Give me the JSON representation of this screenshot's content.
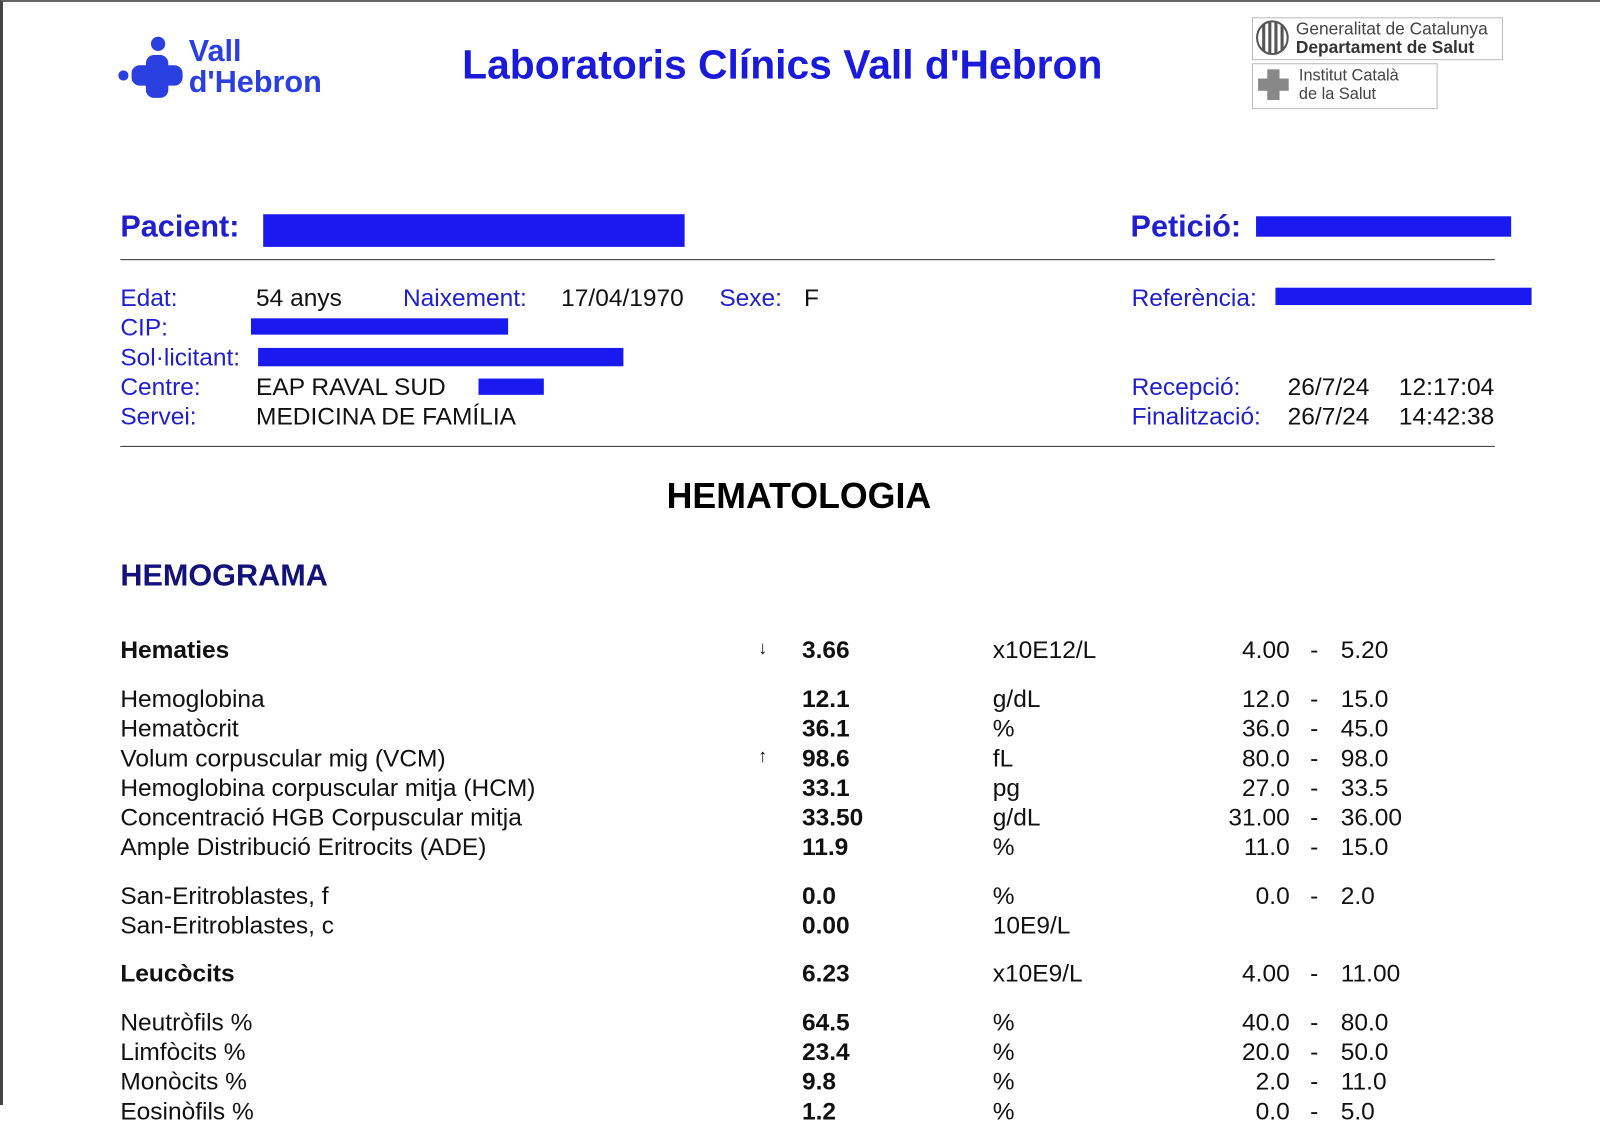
{
  "header": {
    "logo_text": [
      "Vall",
      "d'Hebron"
    ],
    "title": "Laboratoris Clínics Vall d'Hebron",
    "gencat": [
      "Generalitat de Catalunya",
      "Departament de Salut"
    ],
    "ics": [
      "Institut Català",
      "de la Salut"
    ]
  },
  "patient": {
    "pacient_label": "Pacient:",
    "peticio_label": "Petició:",
    "edat_label": "Edat:",
    "edat": "54 anys",
    "naixement_label": "Naixement:",
    "naixement": "17/04/1970",
    "sexe_label": "Sexe:",
    "sexe": "F",
    "referencia_label": "Referència:",
    "cip_label": "CIP:",
    "solicitant_label": "Sol·licitant:",
    "centre_label": "Centre:",
    "centre": "EAP RAVAL SUD",
    "servei_label": "Servei:",
    "servei": "MEDICINA DE FAMÍLIA",
    "recepcio_label": "Recepció:",
    "recepcio_date": "26/7/24",
    "recepcio_time": "12:17:04",
    "finalitzacio_label": "Finalització:",
    "finalitzacio_date": "26/7/24",
    "finalitzacio_time": "14:42:38"
  },
  "section": "HEMATOLOGIA",
  "subsection": "HEMOGRAMA",
  "table": {
    "range_separator": "-",
    "rows": [
      {
        "name": "Hematies",
        "bold": true,
        "flag": "↓",
        "result": "3.66",
        "unit": "x10E12/L",
        "low": "4.00",
        "high": "5.20"
      },
      {
        "name": "Hemoglobina",
        "result": "12.1",
        "unit": "g/dL",
        "low": "12.0",
        "high": "15.0"
      },
      {
        "name": "Hematòcrit",
        "result": "36.1",
        "unit": "%",
        "low": "36.0",
        "high": "45.0"
      },
      {
        "name": "Volum corpuscular mig (VCM)",
        "flag": "↑",
        "result": "98.6",
        "unit": "fL",
        "low": "80.0",
        "high": "98.0"
      },
      {
        "name": "Hemoglobina corpuscular mitja (HCM)",
        "result": "33.1",
        "unit": "pg",
        "low": "27.0",
        "high": "33.5"
      },
      {
        "name": "Concentració HGB Corpuscular mitja",
        "result": "33.50",
        "unit": "g/dL",
        "low": "31.00",
        "high": "36.00"
      },
      {
        "name": "Ample Distribució Eritrocits (ADE)",
        "result": "11.9",
        "unit": "%",
        "low": "11.0",
        "high": "15.0"
      },
      {
        "name": "San-Eritroblastes, f",
        "result": "0.0",
        "unit": "%",
        "low": "0.0",
        "high": "2.0"
      },
      {
        "name": "San-Eritroblastes, c",
        "result": "0.00",
        "unit": "10E9/L"
      },
      {
        "name": "Leucòcits",
        "bold": true,
        "result": "6.23",
        "unit": "x10E9/L",
        "low": "4.00",
        "high": "11.00"
      },
      {
        "name": "Neutròfils %",
        "result": "64.5",
        "unit": "%",
        "low": "40.0",
        "high": "80.0"
      },
      {
        "name": "Limfòcits %",
        "result": "23.4",
        "unit": "%",
        "low": "20.0",
        "high": "50.0"
      },
      {
        "name": "Monòcits %",
        "result": "9.8",
        "unit": "%",
        "low": "2.0",
        "high": "11.0"
      },
      {
        "name": "Eosinòfils %",
        "result": "1.2",
        "unit": "%",
        "low": "0.0",
        "high": "5.0"
      }
    ]
  }
}
